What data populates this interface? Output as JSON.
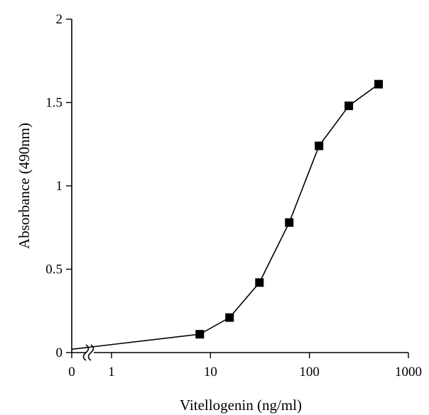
{
  "chart_data": {
    "type": "line",
    "xlabel": "Vitellogenin (ng/ml)",
    "ylabel": "Absorbance (490nm)",
    "x_scale": "log",
    "x_axis_break": true,
    "xlim": [
      0.5,
      1000
    ],
    "ylim": [
      0,
      2
    ],
    "x_ticks": [
      {
        "value": 0,
        "label": "0"
      },
      {
        "value": 1,
        "label": "1"
      },
      {
        "value": 10,
        "label": "10"
      },
      {
        "value": 100,
        "label": "100"
      },
      {
        "value": 1000,
        "label": "1000"
      }
    ],
    "y_ticks": [
      {
        "value": 0,
        "label": "0"
      },
      {
        "value": 0.5,
        "label": "0.5"
      },
      {
        "value": 1,
        "label": "1"
      },
      {
        "value": 1.5,
        "label": "1.5"
      },
      {
        "value": 2,
        "label": "2"
      }
    ],
    "zero_point": {
      "x": 0,
      "y": 0.02
    },
    "series": [
      {
        "marker": "square",
        "x": [
          7.8,
          15.6,
          31.25,
          62.5,
          125,
          250,
          500
        ],
        "y": [
          0.11,
          0.21,
          0.42,
          0.78,
          1.24,
          1.48,
          1.61
        ]
      }
    ],
    "grid": false,
    "legend": "none"
  }
}
